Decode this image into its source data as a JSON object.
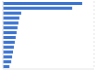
{
  "chart_data": {
    "type": "bar",
    "orientation": "horizontal",
    "categories": [
      null,
      null,
      null,
      null,
      null,
      null,
      null,
      null,
      null,
      null,
      null,
      null,
      null,
      null
    ],
    "values": [
      87,
      76,
      20,
      18,
      17,
      16,
      15,
      14,
      13,
      12,
      11,
      10,
      9,
      7
    ],
    "color": "#3b73d1",
    "xlim": [
      0,
      100
    ],
    "xticks": [
      0,
      25,
      50,
      75,
      100
    ],
    "grid": true,
    "tick_labels": false
  }
}
